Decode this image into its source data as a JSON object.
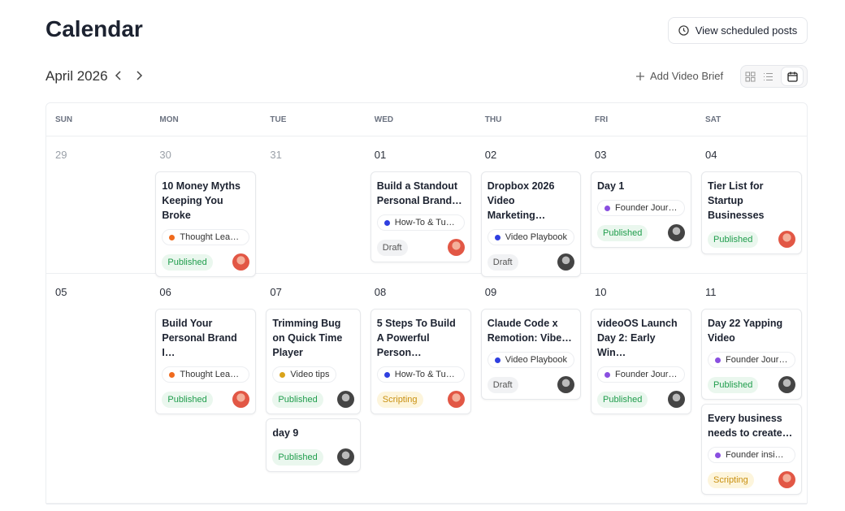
{
  "header": {
    "title": "Calendar",
    "button": "View scheduled posts"
  },
  "toolbar": {
    "month": "April 2026",
    "add": "Add Video Brief"
  },
  "weekdays": [
    "SUN",
    "MON",
    "TUE",
    "WED",
    "THU",
    "FRI",
    "SAT"
  ],
  "weeks": [
    {
      "days": [
        {
          "date": "29",
          "muted": true,
          "posts": []
        },
        {
          "date": "30",
          "muted": true,
          "posts": [
            {
              "title": "10 Money Myths Keeping You Broke",
              "tag": "Thought Lead…",
              "tag_color": "#f06a1d",
              "status": "Published",
              "status_color": "green",
              "avatar": "red"
            }
          ]
        },
        {
          "date": "31",
          "muted": true,
          "posts": []
        },
        {
          "date": "01",
          "muted": false,
          "posts": [
            {
              "title": "Build a Standout Personal Brand…",
              "tag": "How-To & Tuto…",
              "tag_color": "#2f3fe0",
              "status": "Draft",
              "status_color": "gray",
              "avatar": "red"
            }
          ]
        },
        {
          "date": "02",
          "muted": false,
          "posts": [
            {
              "title": "Dropbox 2026 Video Marketing…",
              "tag": "Video Playbook",
              "tag_color": "#2f3fe0",
              "status": "Draft",
              "status_color": "gray",
              "avatar": "gray"
            }
          ]
        },
        {
          "date": "03",
          "muted": false,
          "posts": [
            {
              "title": "Day 1",
              "tag": "Founder Journ…",
              "tag_color": "#8a4fe0",
              "status": "Published",
              "status_color": "green",
              "avatar": "gray"
            }
          ]
        },
        {
          "date": "04",
          "muted": false,
          "posts": [
            {
              "title": "Tier List for Startup Businesses",
              "status": "Published",
              "status_color": "green",
              "avatar": "red"
            }
          ]
        }
      ]
    },
    {
      "days": [
        {
          "date": "05",
          "muted": false,
          "posts": []
        },
        {
          "date": "06",
          "muted": false,
          "posts": [
            {
              "title": "Build Your Personal Brand I…",
              "tag": "Thought Lead…",
              "tag_color": "#f06a1d",
              "status": "Published",
              "status_color": "green",
              "avatar": "red"
            }
          ]
        },
        {
          "date": "07",
          "muted": false,
          "posts": [
            {
              "title": "Trimming Bug on Quick Time Player",
              "tag": "Video tips",
              "tag_color": "#d9a31a",
              "status": "Published",
              "status_color": "green",
              "avatar": "gray"
            },
            {
              "title": "day 9",
              "status": "Published",
              "status_color": "green",
              "avatar": "gray"
            }
          ]
        },
        {
          "date": "08",
          "muted": false,
          "posts": [
            {
              "title": "5 Steps To Build A Powerful Person…",
              "tag": "How-To & Tuto…",
              "tag_color": "#2f3fe0",
              "status": "Scripting",
              "status_color": "amber",
              "avatar": "red"
            }
          ]
        },
        {
          "date": "09",
          "muted": false,
          "posts": [
            {
              "title": "Claude Code x Remotion: Vibe…",
              "tag": "Video Playbook",
              "tag_color": "#2f3fe0",
              "status": "Draft",
              "status_color": "gray",
              "avatar": "gray"
            }
          ]
        },
        {
          "date": "10",
          "muted": false,
          "posts": [
            {
              "title": "videoOS Launch Day 2: Early Win…",
              "tag": "Founder Journ…",
              "tag_color": "#8a4fe0",
              "status": "Published",
              "status_color": "green",
              "avatar": "gray"
            }
          ]
        },
        {
          "date": "11",
          "muted": false,
          "posts": [
            {
              "title": "Day 22 Yapping Video",
              "tag": "Founder Journ…",
              "tag_color": "#8a4fe0",
              "status": "Published",
              "status_color": "green",
              "avatar": "gray"
            },
            {
              "title": "Every business needs to create…",
              "tag": "Founder insights",
              "tag_color": "#8a4fe0",
              "status": "Scripting",
              "status_color": "amber",
              "avatar": "red"
            }
          ]
        }
      ]
    }
  ]
}
